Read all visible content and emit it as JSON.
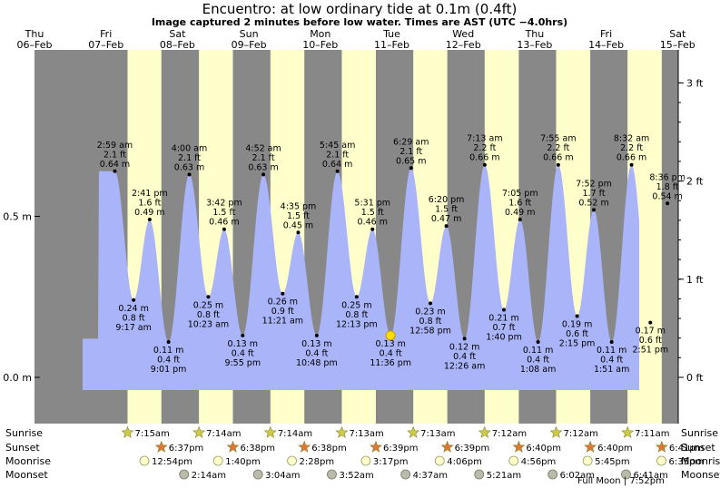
{
  "title": "Encuentro: at low  ordinary tide at 0.1m (0.4ft)",
  "subtitle": "Image captured 2 minutes before low water. Times are AST (UTC −4.0hrs)",
  "colors": {
    "night": "#888888",
    "day": "#ffffcc",
    "tide": "#aab4f8",
    "date_text": "#dd0000",
    "sun_star": "#cccc44",
    "sunset_star": "#dd7733",
    "moonrise": "#ffffcc",
    "moonset": "#bbbbaa",
    "marker": "#ffdd00"
  },
  "days": [
    {
      "dow": "Thu",
      "date": "06–Feb"
    },
    {
      "dow": "Fri",
      "date": "07–Feb"
    },
    {
      "dow": "Sat",
      "date": "08–Feb"
    },
    {
      "dow": "Sun",
      "date": "09–Feb"
    },
    {
      "dow": "Mon",
      "date": "10–Feb"
    },
    {
      "dow": "Tue",
      "date": "11–Feb"
    },
    {
      "dow": "Wed",
      "date": "12–Feb"
    },
    {
      "dow": "Thu",
      "date": "13–Feb"
    },
    {
      "dow": "Fri",
      "date": "14–Feb"
    },
    {
      "dow": "Sat",
      "date": "15–Feb"
    }
  ],
  "row_labels": {
    "sunrise": "Sunrise",
    "sunset": "Sunset",
    "moonrise": "Moonrise",
    "moonset": "Moonset"
  },
  "sunrise": [
    {
      "day": 1,
      "time": "7:15am"
    },
    {
      "day": 2,
      "time": "7:14am"
    },
    {
      "day": 3,
      "time": "7:14am"
    },
    {
      "day": 4,
      "time": "7:13am"
    },
    {
      "day": 5,
      "time": "7:13am"
    },
    {
      "day": 6,
      "time": "7:12am"
    },
    {
      "day": 7,
      "time": "7:12am"
    },
    {
      "day": 8,
      "time": "7:11am"
    }
  ],
  "sunset": [
    {
      "day": 1,
      "time": "6:37pm"
    },
    {
      "day": 2,
      "time": "6:38pm"
    },
    {
      "day": 3,
      "time": "6:38pm"
    },
    {
      "day": 4,
      "time": "6:39pm"
    },
    {
      "day": 5,
      "time": "6:39pm"
    },
    {
      "day": 6,
      "time": "6:40pm"
    },
    {
      "day": 7,
      "time": "6:40pm"
    },
    {
      "day": 8,
      "time": "6:41pm"
    }
  ],
  "moonrise": [
    {
      "day": 1,
      "time": "12:54pm"
    },
    {
      "day": 2,
      "time": "1:40pm"
    },
    {
      "day": 3,
      "time": "2:28pm"
    },
    {
      "day": 4,
      "time": "3:17pm"
    },
    {
      "day": 5,
      "time": "4:06pm"
    },
    {
      "day": 6,
      "time": "4:56pm"
    },
    {
      "day": 7,
      "time": "5:45pm"
    },
    {
      "day": 8,
      "time": "6:35pm"
    }
  ],
  "moonset": [
    {
      "day": 2,
      "time": "2:14am"
    },
    {
      "day": 3,
      "time": "3:04am"
    },
    {
      "day": 4,
      "time": "3:52am"
    },
    {
      "day": 5,
      "time": "4:37am"
    },
    {
      "day": 6,
      "time": "5:21am"
    },
    {
      "day": 7,
      "time": "6:02am"
    },
    {
      "day": 8,
      "time": "6:41am"
    }
  ],
  "moon_phase_note": "Full Moon | 7:52pm",
  "chart_data": {
    "type": "area",
    "title": "Encuentro: at low  ordinary tide at 0.1m (0.4ft)",
    "xlabel": "",
    "ylabel": "",
    "x_unit": "AST",
    "x_range": [
      "06-Feb 00:00",
      "15-Feb 00:00"
    ],
    "ylim_m": [
      -0.05,
      0.87
    ],
    "left_ticks": [
      {
        "value": 0.0,
        "label": "0.0 m"
      },
      {
        "value": 0.5,
        "label": "0.5 m"
      }
    ],
    "right_ticks": [
      {
        "value": 0.0,
        "label": "0 ft"
      },
      {
        "value": 0.3048,
        "label": "1 ft"
      },
      {
        "value": 0.6096,
        "label": "2 ft"
      },
      {
        "value": 0.9144,
        "label": "3 ft"
      }
    ],
    "current": {
      "time": "10-Feb 23:34",
      "height_m": 0.13
    },
    "extremes": [
      {
        "time": "06-Feb 21:30",
        "height_m": 0.64,
        "type": "high",
        "label_time": "",
        "label_ft": "",
        "label_m": ""
      },
      {
        "time": "07-Feb 02:59",
        "height_m": 0.64,
        "type": "high",
        "label_time": "2:59 am",
        "label_ft": "2.1 ft",
        "label_m": "0.64 m"
      },
      {
        "time": "07-Feb 09:17",
        "height_m": 0.24,
        "type": "low",
        "label_time": "9:17 am",
        "label_ft": "0.8 ft",
        "label_m": "0.24 m"
      },
      {
        "time": "07-Feb 14:41",
        "height_m": 0.49,
        "type": "high",
        "label_time": "2:41 pm",
        "label_ft": "1.6 ft",
        "label_m": "0.49 m"
      },
      {
        "time": "07-Feb 21:01",
        "height_m": 0.11,
        "type": "low",
        "label_time": "9:01 pm",
        "label_ft": "0.4 ft",
        "label_m": "0.11 m"
      },
      {
        "time": "08-Feb 04:00",
        "height_m": 0.63,
        "type": "high",
        "label_time": "4:00 am",
        "label_ft": "2.1 ft",
        "label_m": "0.63 m"
      },
      {
        "time": "08-Feb 10:23",
        "height_m": 0.25,
        "type": "low",
        "label_time": "10:23 am",
        "label_ft": "0.8 ft",
        "label_m": "0.25 m"
      },
      {
        "time": "08-Feb 15:42",
        "height_m": 0.46,
        "type": "high",
        "label_time": "3:42 pm",
        "label_ft": "1.5 ft",
        "label_m": "0.46 m"
      },
      {
        "time": "08-Feb 21:55",
        "height_m": 0.13,
        "type": "low",
        "label_time": "9:55 pm",
        "label_ft": "0.4 ft",
        "label_m": "0.13 m"
      },
      {
        "time": "09-Feb 04:52",
        "height_m": 0.63,
        "type": "high",
        "label_time": "4:52 am",
        "label_ft": "2.1 ft",
        "label_m": "0.63 m"
      },
      {
        "time": "09-Feb 11:21",
        "height_m": 0.26,
        "type": "low",
        "label_time": "11:21 am",
        "label_ft": "0.9 ft",
        "label_m": "0.26 m"
      },
      {
        "time": "09-Feb 16:35",
        "height_m": 0.45,
        "type": "high",
        "label_time": "4:35 pm",
        "label_ft": "1.5 ft",
        "label_m": "0.45 m"
      },
      {
        "time": "09-Feb 22:48",
        "height_m": 0.13,
        "type": "low",
        "label_time": "10:48 pm",
        "label_ft": "0.4 ft",
        "label_m": "0.13 m"
      },
      {
        "time": "10-Feb 05:45",
        "height_m": 0.64,
        "type": "high",
        "label_time": "5:45 am",
        "label_ft": "2.1 ft",
        "label_m": "0.64 m"
      },
      {
        "time": "10-Feb 12:13",
        "height_m": 0.25,
        "type": "low",
        "label_time": "12:13 pm",
        "label_ft": "0.8 ft",
        "label_m": "0.25 m"
      },
      {
        "time": "10-Feb 17:31",
        "height_m": 0.46,
        "type": "high",
        "label_time": "5:31 pm",
        "label_ft": "1.5 ft",
        "label_m": "0.46 m"
      },
      {
        "time": "10-Feb 23:36",
        "height_m": 0.13,
        "type": "low",
        "label_time": "11:36 pm",
        "label_ft": "0.4 ft",
        "label_m": "0.13 m"
      },
      {
        "time": "11-Feb 06:29",
        "height_m": 0.65,
        "type": "high",
        "label_time": "6:29 am",
        "label_ft": "2.1 ft",
        "label_m": "0.65 m"
      },
      {
        "time": "11-Feb 12:58",
        "height_m": 0.23,
        "type": "low",
        "label_time": "12:58 pm",
        "label_ft": "0.8 ft",
        "label_m": "0.23 m"
      },
      {
        "time": "11-Feb 18:20",
        "height_m": 0.47,
        "type": "high",
        "label_time": "6:20 pm",
        "label_ft": "1.5 ft",
        "label_m": "0.47 m"
      },
      {
        "time": "12-Feb 00:26",
        "height_m": 0.12,
        "type": "low",
        "label_time": "12:26 am",
        "label_ft": "0.4 ft",
        "label_m": "0.12 m"
      },
      {
        "time": "12-Feb 07:13",
        "height_m": 0.66,
        "type": "high",
        "label_time": "7:13 am",
        "label_ft": "2.2 ft",
        "label_m": "0.66 m"
      },
      {
        "time": "12-Feb 13:40",
        "height_m": 0.21,
        "type": "low",
        "label_time": "1:40 pm",
        "label_ft": "0.7 ft",
        "label_m": "0.21 m"
      },
      {
        "time": "12-Feb 19:05",
        "height_m": 0.49,
        "type": "high",
        "label_time": "7:05 pm",
        "label_ft": "1.6 ft",
        "label_m": "0.49 m"
      },
      {
        "time": "13-Feb 01:08",
        "height_m": 0.11,
        "type": "low",
        "label_time": "1:08 am",
        "label_ft": "0.4 ft",
        "label_m": "0.11 m"
      },
      {
        "time": "13-Feb 07:55",
        "height_m": 0.66,
        "type": "high",
        "label_time": "7:55 am",
        "label_ft": "2.2 ft",
        "label_m": "0.66 m"
      },
      {
        "time": "13-Feb 14:15",
        "height_m": 0.19,
        "type": "low",
        "label_time": "2:15 pm",
        "label_ft": "0.6 ft",
        "label_m": "0.19 m"
      },
      {
        "time": "13-Feb 19:52",
        "height_m": 0.52,
        "type": "high",
        "label_time": "7:52 pm",
        "label_ft": "1.7 ft",
        "label_m": "0.52 m"
      },
      {
        "time": "14-Feb 01:51",
        "height_m": 0.11,
        "type": "low",
        "label_time": "1:51 am",
        "label_ft": "0.4 ft",
        "label_m": "0.11 m"
      },
      {
        "time": "14-Feb 08:32",
        "height_m": 0.66,
        "type": "high",
        "label_time": "8:32 am",
        "label_ft": "2.2 ft",
        "label_m": "0.66 m"
      },
      {
        "time": "14-Feb 14:51",
        "height_m": 0.17,
        "type": "low",
        "label_time": "2:51 pm",
        "label_ft": "0.6 ft",
        "label_m": "0.17 m"
      },
      {
        "time": "14-Feb 20:36",
        "height_m": 0.54,
        "type": "high",
        "label_time": "8:36 pm",
        "label_ft": "1.8 ft",
        "label_m": "0.54 m"
      },
      {
        "time": "15-Feb 02:30",
        "height_m": 0.12,
        "type": "low",
        "label_time": "",
        "label_ft": "",
        "label_m": ""
      }
    ]
  }
}
